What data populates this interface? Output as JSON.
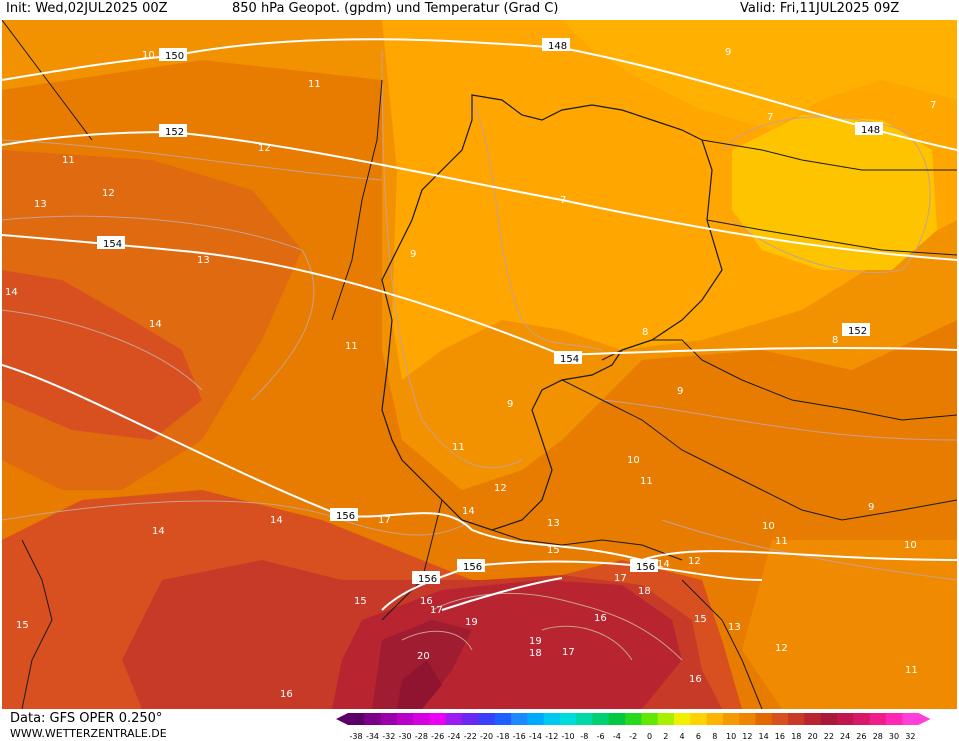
{
  "header": {
    "init": "Init: Wed,02JUL2025 00Z",
    "title": "850 hPa Geopot. (gpdm) und Temperatur (Grad C)",
    "valid": "Valid: Fri,11JUL2025 09Z"
  },
  "footer": {
    "data_source": "Data: GFS OPER 0.250°",
    "website": "WWW.WETTERZENTRALE.DE"
  },
  "legend": {
    "ticks": [
      "-38",
      "-34",
      "-32",
      "-30",
      "-28",
      "-26",
      "-24",
      "-22",
      "-20",
      "-18",
      "-16",
      "-14",
      "-12",
      "-10",
      "-8",
      "-6",
      "-4",
      "-2",
      "0",
      "2",
      "4",
      "6",
      "8",
      "10",
      "12",
      "14",
      "16",
      "18",
      "20",
      "22",
      "24",
      "26",
      "28",
      "30",
      "32"
    ],
    "colors": [
      "#5a0066",
      "#7a0088",
      "#9a00aa",
      "#b800c8",
      "#d400e0",
      "#ea00f2",
      "#9a1cf0",
      "#6a28f0",
      "#3a40f8",
      "#1e60ff",
      "#1e88ff",
      "#00aaff",
      "#00c8f0",
      "#00dcdc",
      "#00d8a8",
      "#00d070",
      "#00c840",
      "#28d820",
      "#60e800",
      "#a8f000",
      "#f0f000",
      "#ffd200",
      "#ffb400",
      "#f59a00",
      "#ee8400",
      "#e06a00",
      "#d85020",
      "#c83a28",
      "#b82430",
      "#a81838",
      "#c0164c",
      "#d81868",
      "#f01c8c",
      "#ff28b4",
      "#ff40d8"
    ]
  },
  "map": {
    "geopotential_labels": [
      "150",
      "148",
      "152",
      "154",
      "156"
    ],
    "temperature_labels": [
      "7",
      "8",
      "9",
      "10",
      "11",
      "12",
      "13",
      "14",
      "15",
      "16",
      "17",
      "18",
      "19",
      "20"
    ]
  },
  "colors": {
    "temp_6_8": "#ffc000",
    "temp_8_10": "#ffa600",
    "temp_10_12": "#f39200",
    "temp_12_14": "#e87c00",
    "temp_14_16": "#e06010",
    "temp_16_18": "#d04a20",
    "temp_18_20": "#b83028",
    "temp_20_22": "#a01c30",
    "isohypse": "#ffffff",
    "isotherm": "#c89a80",
    "border": "#1a1a1a"
  }
}
